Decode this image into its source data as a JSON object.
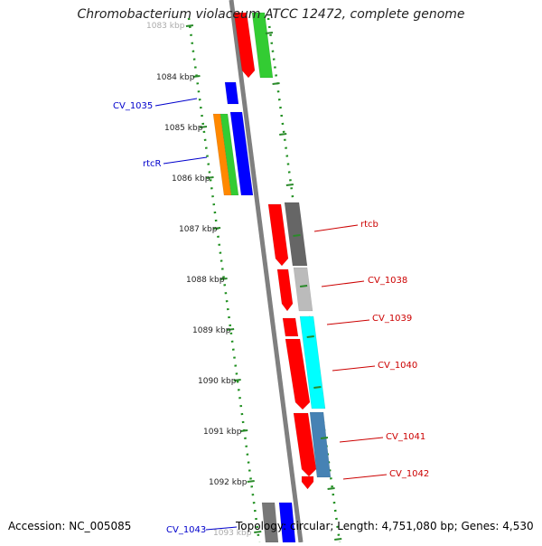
{
  "title": "Chromobacterium violaceum ATCC 12472, complete genome",
  "accession": "Accession: NC_005085",
  "topology": "Topology: circular; Length: 4,751,080 bp; Genes: 4,530",
  "colors": {
    "backbone": "#7f7f7f",
    "tick": "#2a8a2a",
    "dots": "#1f8f1f",
    "left_label": "#0000cc",
    "right_label": "#cc0000"
  },
  "ruler_labels": [
    {
      "kbp": 1083,
      "text": "1083 kbp"
    },
    {
      "kbp": 1084,
      "text": "1084 kbp"
    },
    {
      "kbp": 1085,
      "text": "1085 kbp"
    },
    {
      "kbp": 1086,
      "text": "1086 kbp"
    },
    {
      "kbp": 1087,
      "text": "1087 kbp"
    },
    {
      "kbp": 1088,
      "text": "1088 kbp"
    },
    {
      "kbp": 1089,
      "text": "1089 kbp"
    },
    {
      "kbp": 1090,
      "text": "1090 kbp"
    },
    {
      "kbp": 1091,
      "text": "1091 kbp"
    },
    {
      "kbp": 1092,
      "text": "1092 kbp"
    },
    {
      "kbp": 1093,
      "text": "1093 kbp"
    }
  ],
  "gene_labels": [
    {
      "name": "CV_1035",
      "side": "left"
    },
    {
      "name": "rtcR",
      "side": "left"
    },
    {
      "name": "rtcb",
      "side": "right"
    },
    {
      "name": "CV_1038",
      "side": "right"
    },
    {
      "name": "CV_1039",
      "side": "right"
    },
    {
      "name": "CV_1040",
      "side": "right"
    },
    {
      "name": "CV_1041",
      "side": "right"
    },
    {
      "name": "CV_1042",
      "side": "right"
    },
    {
      "name": "CV_1043",
      "side": "left"
    }
  ]
}
